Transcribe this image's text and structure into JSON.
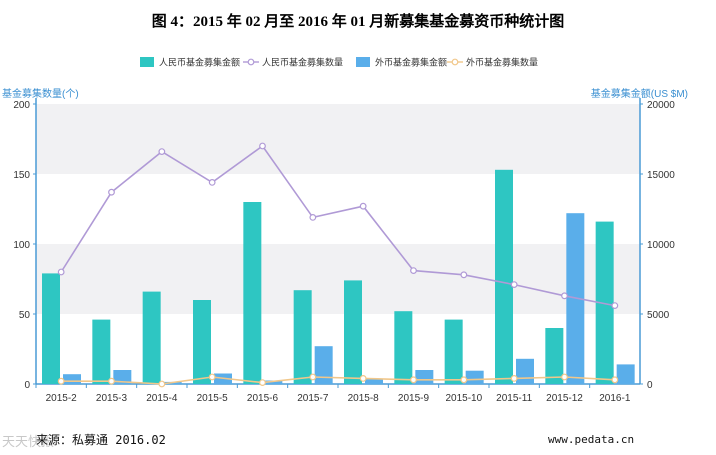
{
  "chart_data": {
    "type": "bar",
    "title": "图 4：2015 年 02 月至 2016 年 01 月新募集基金募资币种统计图",
    "categories": [
      "2015-2",
      "2015-3",
      "2015-4",
      "2015-5",
      "2015-6",
      "2015-7",
      "2015-8",
      "2015-9",
      "2015-10",
      "2015-11",
      "2015-12",
      "2016-1"
    ],
    "y_left": {
      "label": "基金募集数量(个)",
      "range": [
        0,
        200
      ],
      "ticks": [
        0,
        50,
        100,
        150,
        200
      ]
    },
    "y_right": {
      "label": "基金募集金额(US $M)",
      "range": [
        0,
        20000
      ],
      "ticks": [
        0,
        5000,
        10000,
        15000,
        20000
      ]
    },
    "legend": {
      "position": "top",
      "items": [
        {
          "name": "人民币基金募集金额",
          "style": "bar",
          "color": "#2ec6c2"
        },
        {
          "name": "人民币基金募集数量",
          "style": "line",
          "color": "#b09ad6"
        },
        {
          "name": "外币基金募集金额",
          "style": "bar",
          "color": "#5aaeea"
        },
        {
          "name": "外币基金募集数量",
          "style": "line",
          "color": "#f1c78a"
        }
      ]
    },
    "series": [
      {
        "name": "人民币基金募集金额",
        "type": "bar",
        "axis": "right",
        "color": "#2ec6c2",
        "values": [
          7900,
          4600,
          6600,
          6000,
          13000,
          6700,
          7400,
          5200,
          4600,
          15300,
          4000,
          11600
        ]
      },
      {
        "name": "外币基金募集金额",
        "type": "bar",
        "axis": "right",
        "color": "#5aaeea",
        "values": [
          700,
          1000,
          150,
          750,
          250,
          2700,
          350,
          1000,
          950,
          1800,
          12200,
          1400
        ]
      },
      {
        "name": "人民币基金募集数量",
        "type": "line",
        "axis": "left",
        "color": "#b09ad6",
        "values": [
          80,
          137,
          166,
          144,
          170,
          119,
          127,
          81,
          78,
          71,
          63,
          56
        ]
      },
      {
        "name": "外币基金募集数量",
        "type": "line",
        "axis": "left",
        "color": "#f1c78a",
        "values": [
          2,
          2,
          0,
          5,
          1,
          5,
          4,
          3,
          3,
          4,
          5,
          3
        ]
      }
    ]
  },
  "footer": {
    "source": "来源：私募通   2016.02",
    "site": "www.pedata.cn",
    "watermark": "天天快报"
  }
}
